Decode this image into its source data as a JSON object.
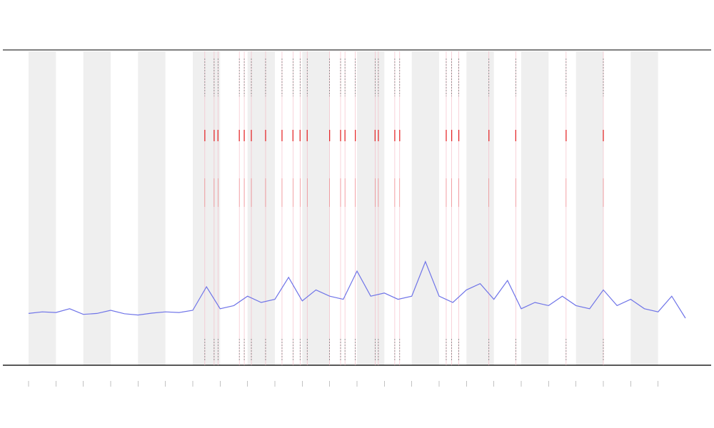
{
  "chart_data": {
    "type": "line",
    "x": [
      0,
      0.25,
      0.5,
      0.75,
      1,
      1.25,
      1.5,
      1.75,
      2,
      2.25,
      2.5,
      2.75,
      3,
      3.25,
      3.5,
      3.75,
      4,
      4.25,
      4.5,
      4.75,
      5,
      5.25,
      5.5,
      5.75,
      6,
      6.25,
      6.5,
      6.75,
      7,
      7.25,
      7.5,
      7.75,
      8,
      8.25,
      8.5,
      8.75,
      9,
      9.25,
      9.5,
      9.75,
      10,
      10.25,
      10.5,
      10.75,
      11,
      11.25,
      11.5,
      11.75,
      12
    ],
    "series": [
      {
        "color": "#6f74e8",
        "values": [
          16.5,
          17,
          16.8,
          18,
          16.2,
          16.5,
          17.5,
          16.4,
          16,
          16.6,
          17,
          16.8,
          17.5,
          25,
          18,
          19,
          22,
          20,
          21,
          28,
          20.5,
          24,
          22,
          21,
          30,
          22,
          23,
          21,
          22,
          33,
          22,
          20,
          24,
          26,
          21,
          27,
          18,
          20,
          19,
          22,
          19,
          18,
          24,
          19,
          21,
          18,
          17,
          22,
          15
        ]
      }
    ],
    "events": {
      "color": "#e31a1c",
      "x": [
        3.22,
        3.39,
        3.46,
        3.85,
        3.94,
        4.07,
        4.33,
        4.63,
        4.83,
        4.96,
        5.09,
        5.5,
        5.7,
        5.78,
        5.97,
        6.33,
        6.39,
        6.69,
        6.78,
        7.63,
        7.73,
        7.86,
        8.41,
        8.9,
        9.82,
        10.5
      ]
    },
    "xlim": [
      0,
      12
    ],
    "ylim": [
      0,
      100
    ],
    "xticks": [
      0,
      0.5,
      1,
      1.5,
      2,
      2.5,
      3,
      3.5,
      4,
      4.5,
      5,
      5.5,
      6,
      6.5,
      7,
      7.5,
      8,
      8.5,
      9,
      9.5,
      10,
      10.5,
      11,
      11.5
    ]
  }
}
